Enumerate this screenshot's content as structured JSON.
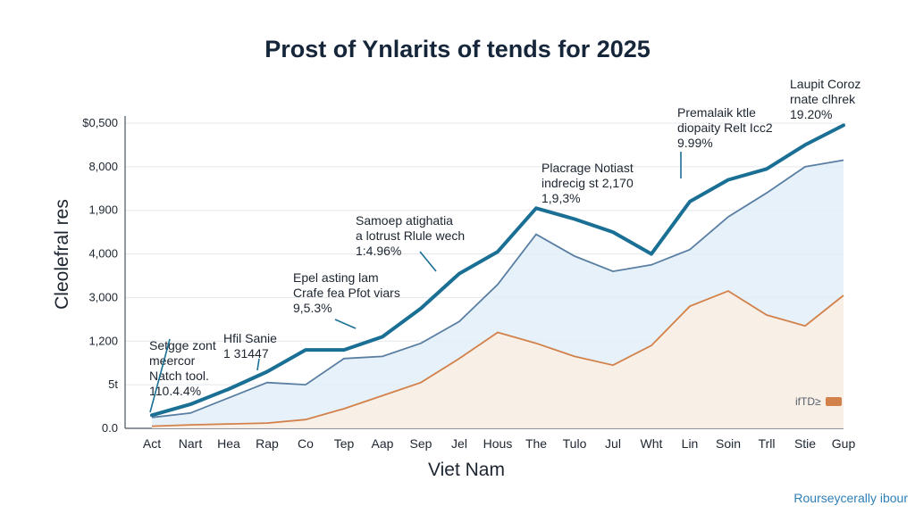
{
  "chart_data": {
    "type": "line",
    "title": "Prost of Ynlarits of tends for 2025",
    "xlabel": "Viet Nam",
    "ylabel": "Cleolefral res",
    "categories": [
      "Act",
      "Nart",
      "Hea",
      "Rap",
      "Co",
      "Tep",
      "Aap",
      "Sep",
      "Jel",
      "Hous",
      "The",
      "Tulo",
      "Jul",
      "Wht",
      "Lin",
      "Soin",
      "Trll",
      "Stie",
      "Gup"
    ],
    "y_tick_labels": [
      "0.0",
      "5t",
      "1,200",
      "3,000",
      "4,000",
      "1,900",
      "8,000",
      "$0,500"
    ],
    "grid": true,
    "series": [
      {
        "name": "",
        "role": "highlight-line",
        "color": "#1a6f94",
        "values": [
          0.3,
          0.55,
          0.9,
          1.3,
          1.8,
          1.8,
          2.1,
          2.75,
          3.55,
          4.05,
          5.05,
          4.8,
          4.5,
          4.0,
          5.2,
          5.7,
          5.95,
          6.5,
          6.95
        ]
      },
      {
        "name": "",
        "role": "area",
        "color": "#5a7fa3",
        "values": [
          0.25,
          0.35,
          0.7,
          1.05,
          1.0,
          1.6,
          1.65,
          1.95,
          2.45,
          3.3,
          4.45,
          3.95,
          3.6,
          3.75,
          4.1,
          4.85,
          5.4,
          6.0,
          6.15
        ]
      },
      {
        "name": "",
        "role": "area",
        "color": "#d3814a",
        "values": [
          0.05,
          0.08,
          0.1,
          0.12,
          0.2,
          0.45,
          0.75,
          1.05,
          1.6,
          2.2,
          1.95,
          1.65,
          1.45,
          1.9,
          2.8,
          3.15,
          2.6,
          2.35,
          3.05
        ]
      }
    ],
    "annotations": [
      {
        "lines": [
          "Setgge zont",
          "meercor",
          "Natch tool.",
          "110.4.4%"
        ]
      },
      {
        "lines": [
          "Hfil Sanie",
          "1 31447"
        ]
      },
      {
        "lines": [
          "Epel asting lam",
          "Crafe fea Pfot viars",
          "9,5.3%"
        ]
      },
      {
        "lines": [
          "Samoep atighatia",
          "a lotrust Rlule wech",
          "1:4.96%"
        ]
      },
      {
        "lines": [
          "Placrage Notiast",
          "indrecig st 2,170",
          "1,9,3%"
        ]
      },
      {
        "lines": [
          "Premalaik ktle",
          "diopaity Relt Icc2",
          "9.99%"
        ]
      },
      {
        "lines": [
          "Laupit Coroz",
          "rnate clhrek",
          "19.20%"
        ]
      }
    ],
    "corner_label": "ifTD≥",
    "footer": "Rourseycerally ibour"
  }
}
